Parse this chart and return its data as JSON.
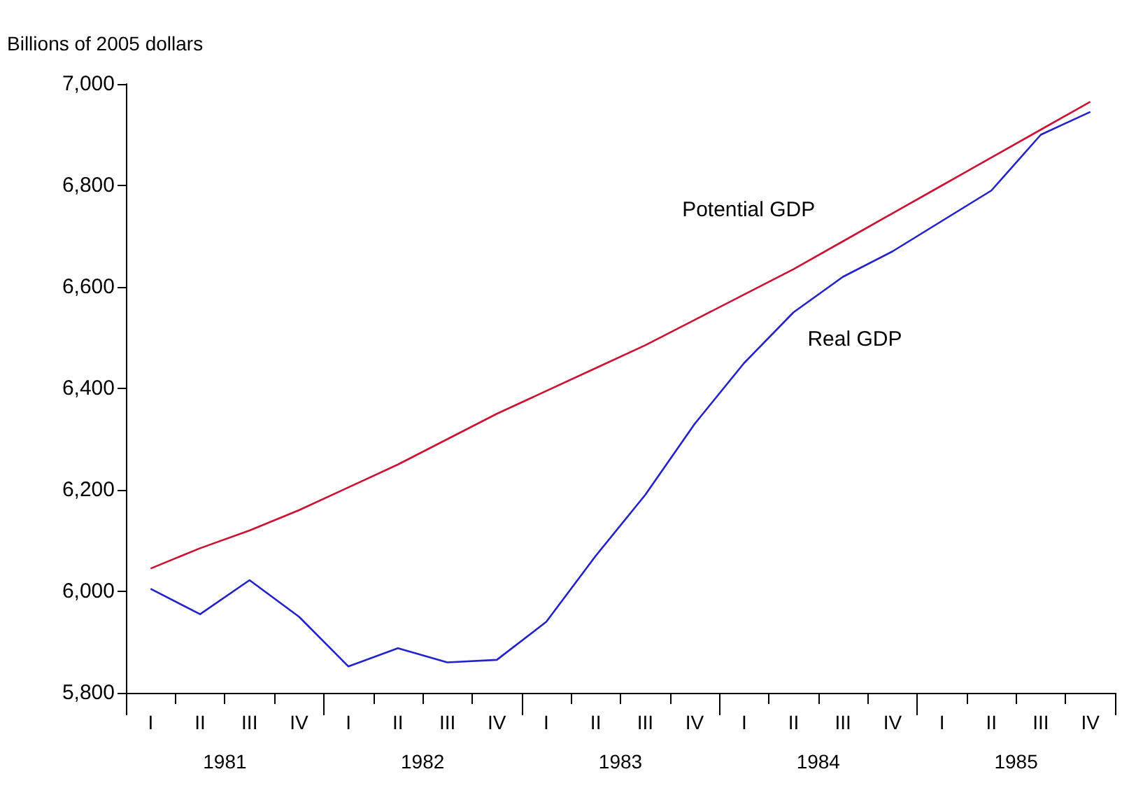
{
  "chart_data": {
    "type": "line",
    "ylabel": "Billions of 2005 dollars",
    "categories": [
      "I",
      "II",
      "III",
      "IV",
      "I",
      "II",
      "III",
      "IV",
      "I",
      "II",
      "III",
      "IV",
      "I",
      "II",
      "III",
      "IV",
      "I",
      "II",
      "III",
      "IV"
    ],
    "annotations": [
      "1981",
      "1982",
      "1983",
      "1984",
      "1985"
    ],
    "series": [
      {
        "name": "Potential GDP",
        "color": "#cc1133",
        "values": [
          6045,
          6085,
          6120,
          6160,
          6205,
          6250,
          6300,
          6350,
          6395,
          6440,
          6485,
          6535,
          6585,
          6635,
          6690,
          6745,
          6800,
          6855,
          6910,
          6965
        ]
      },
      {
        "name": "Real GDP",
        "color": "#2222cc",
        "values": [
          6005,
          5955,
          6022,
          5950,
          5852,
          5888,
          5860,
          5865,
          5940,
          6070,
          6190,
          6330,
          6450,
          6550,
          6620,
          6670,
          6730,
          6790,
          6900,
          6945
        ]
      }
    ],
    "ylim": [
      5800,
      7000
    ],
    "yticks": [
      {
        "value": 5800,
        "label": "5,800"
      },
      {
        "value": 6000,
        "label": "6,000"
      },
      {
        "value": 6200,
        "label": "6,200"
      },
      {
        "value": 6400,
        "label": "6,400"
      },
      {
        "value": 6600,
        "label": "6,600"
      },
      {
        "value": 6800,
        "label": "6,800"
      },
      {
        "value": 7000,
        "label": "7,000"
      }
    ],
    "grid": false,
    "legend": false,
    "marker": "none",
    "line_style": "solid"
  }
}
